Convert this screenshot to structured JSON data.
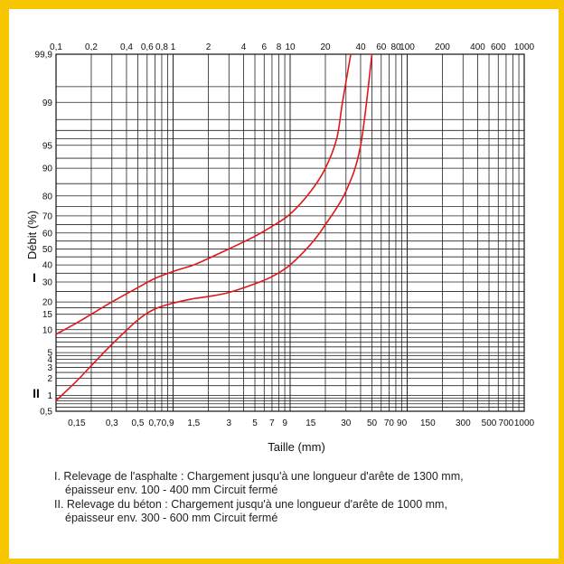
{
  "chart_data": {
    "type": "line",
    "xlabel": "Taille (mm)",
    "ylabel": "Débit (%)",
    "x_scale": "log",
    "y_scale": "probability",
    "xlim": [
      0.1,
      1000
    ],
    "ylim": [
      0.5,
      99.9
    ],
    "grid": true,
    "top_ticks": [
      "0,1",
      "0,2",
      "0,4",
      "0,6",
      "0,8",
      "1",
      "2",
      "4",
      "6",
      "8",
      "10",
      "20",
      "40",
      "60",
      "80",
      "100",
      "200",
      "400",
      "600",
      "1000"
    ],
    "bottom_ticks": [
      "0,15",
      "0,3",
      "0,5",
      "0,7",
      "0,9",
      "1,5",
      "3",
      "5",
      "7",
      "9",
      "15",
      "30",
      "50",
      "70",
      "90",
      "150",
      "300",
      "500",
      "700",
      "1000"
    ],
    "y_ticks": [
      "0,5",
      "1",
      "2",
      "3",
      "4",
      "5",
      "10",
      "15",
      "20",
      "30",
      "40",
      "50",
      "60",
      "70",
      "80",
      "90",
      "95",
      "99",
      "99,9"
    ],
    "series": [
      {
        "name": "I",
        "color": "#e01818",
        "points": [
          [
            0.1,
            8.8
          ],
          [
            0.15,
            12
          ],
          [
            0.2,
            15
          ],
          [
            0.3,
            20
          ],
          [
            0.5,
            27
          ],
          [
            0.7,
            32
          ],
          [
            1,
            36
          ],
          [
            1.5,
            40
          ],
          [
            2,
            44
          ],
          [
            3,
            50
          ],
          [
            5,
            58
          ],
          [
            7,
            64
          ],
          [
            10,
            71
          ],
          [
            15,
            82
          ],
          [
            20,
            90
          ],
          [
            25,
            96
          ],
          [
            28,
            99
          ],
          [
            33,
            99.9
          ]
        ]
      },
      {
        "name": "II",
        "color": "#e01818",
        "points": [
          [
            0.1,
            0.8
          ],
          [
            0.15,
            1.8
          ],
          [
            0.2,
            3.2
          ],
          [
            0.3,
            6.5
          ],
          [
            0.5,
            13
          ],
          [
            0.7,
            17
          ],
          [
            1,
            19.5
          ],
          [
            1.5,
            21.5
          ],
          [
            2,
            22.5
          ],
          [
            3,
            24.5
          ],
          [
            5,
            29
          ],
          [
            7,
            33
          ],
          [
            10,
            40
          ],
          [
            15,
            53
          ],
          [
            20,
            65
          ],
          [
            30,
            82
          ],
          [
            40,
            95
          ],
          [
            50,
            99.9
          ]
        ]
      }
    ],
    "labels": [
      "I",
      "II"
    ]
  },
  "caption": {
    "line1": "I. Relevage de l'asphalte : Chargement jusqu'à une longueur d'arête de 1300 mm,",
    "line1b": "épaisseur env. 100 - 400 mm Circuit fermé",
    "line2": "II. Relevage du béton : Chargement jusqu'à une longueur d'arête de 1000 mm,",
    "line2b": "épaisseur env. 300 - 600 mm Circuit fermé"
  }
}
